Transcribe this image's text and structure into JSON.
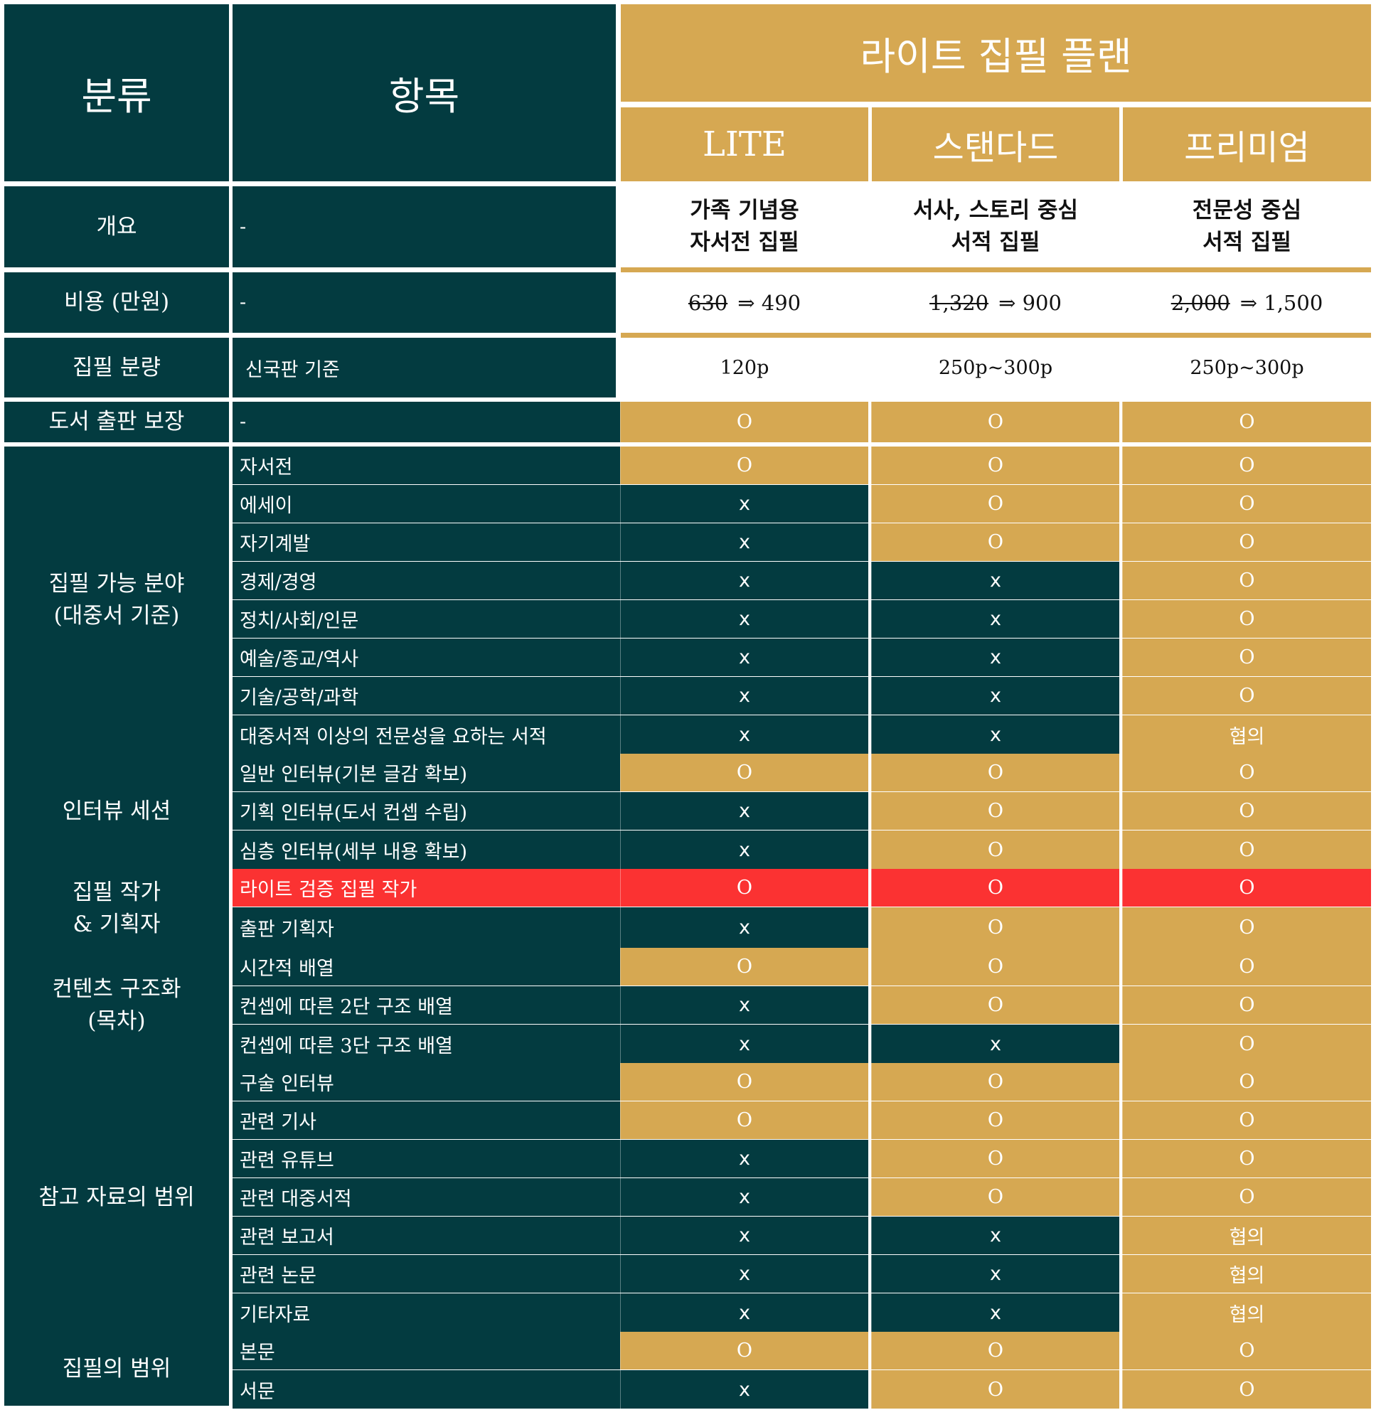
{
  "header": {
    "category_label": "분류",
    "item_label": "항목",
    "plan_group_title": "라이트 집필 플랜",
    "plans": [
      "LITE",
      "스탠다드",
      "프리미엄"
    ]
  },
  "overview": {
    "category": "개요",
    "item": "-",
    "values": [
      [
        "가족 기념용",
        "자서전 집필"
      ],
      [
        "서사, 스토리 중심",
        "서적 집필"
      ],
      [
        "전문성 중심",
        "서적 집필"
      ]
    ]
  },
  "cost": {
    "category": "비용 (만원)",
    "item": "-",
    "values": [
      {
        "original": "630",
        "arrow": "⇒",
        "discounted": "490"
      },
      {
        "original": "1,320",
        "arrow": "⇒",
        "discounted": "900"
      },
      {
        "original": "2,000",
        "arrow": "⇒",
        "discounted": "1,500"
      }
    ]
  },
  "volume": {
    "category": "집필 분량",
    "item": "신국판 기준",
    "values": [
      "120p",
      "250p~300p",
      "250p~300p"
    ]
  },
  "colors": {
    "dark_teal": "#033b40",
    "gold": "#d6a852",
    "highlight_red": "#fb3232",
    "white": "#ffffff"
  },
  "groups": [
    {
      "category": [
        "도서 출판 보장"
      ],
      "rows": [
        {
          "item": "-",
          "values": [
            "O",
            "O",
            "O"
          ],
          "itemStyle": "dark"
        }
      ]
    },
    {
      "category": [
        "집필 가능 분야",
        "(대중서 기준)"
      ],
      "rows": [
        {
          "item": "자서전",
          "values": [
            "O",
            "O",
            "O"
          ]
        },
        {
          "item": "에세이",
          "values": [
            "x",
            "O",
            "O"
          ]
        },
        {
          "item": "자기계발",
          "values": [
            "x",
            "O",
            "O"
          ]
        },
        {
          "item": "경제/경영",
          "values": [
            "x",
            "x",
            "O"
          ]
        },
        {
          "item": "정치/사회/인문",
          "values": [
            "x",
            "x",
            "O"
          ]
        },
        {
          "item": "예술/종교/역사",
          "values": [
            "x",
            "x",
            "O"
          ]
        },
        {
          "item": "기술/공학/과학",
          "values": [
            "x",
            "x",
            "O"
          ]
        },
        {
          "item": "대중서적 이상의 전문성을 요하는 서적",
          "values": [
            "x",
            "x",
            "협의"
          ]
        }
      ]
    },
    {
      "category": [
        "인터뷰 세션"
      ],
      "rows": [
        {
          "item": "일반 인터뷰(기본 글감 확보)",
          "values": [
            "O",
            "O",
            "O"
          ]
        },
        {
          "item": "기획 인터뷰(도서 컨셉 수립)",
          "values": [
            "x",
            "O",
            "O"
          ]
        },
        {
          "item": "심층 인터뷰(세부 내용 확보)",
          "values": [
            "x",
            "O",
            "O"
          ]
        }
      ]
    },
    {
      "category": [
        "집필 작가",
        "& 기획자"
      ],
      "rows": [
        {
          "item": "라이트 검증 집필 작가",
          "values": [
            "O",
            "O",
            "O"
          ],
          "highlight": true
        },
        {
          "item": "출판 기획자",
          "values": [
            "x",
            "O",
            "O"
          ]
        }
      ]
    },
    {
      "category": [
        "컨텐츠 구조화",
        "(목차)"
      ],
      "rows": [
        {
          "item": "시간적 배열",
          "values": [
            "O",
            "O",
            "O"
          ]
        },
        {
          "item": "컨셉에 따른 2단 구조 배열",
          "values": [
            "x",
            "O",
            "O"
          ]
        },
        {
          "item": "컨셉에 따른 3단 구조 배열",
          "values": [
            "x",
            "x",
            "O"
          ]
        }
      ]
    },
    {
      "category": [
        "참고 자료의 범위"
      ],
      "rows": [
        {
          "item": "구술 인터뷰",
          "values": [
            "O",
            "O",
            "O"
          ]
        },
        {
          "item": "관련 기사",
          "values": [
            "O",
            "O",
            "O"
          ]
        },
        {
          "item": "관련 유튜브",
          "values": [
            "x",
            "O",
            "O"
          ]
        },
        {
          "item": "관련 대중서적",
          "values": [
            "x",
            "O",
            "O"
          ]
        },
        {
          "item": "관련 보고서",
          "values": [
            "x",
            "x",
            "협의"
          ]
        },
        {
          "item": "관련 논문",
          "values": [
            "x",
            "x",
            "협의"
          ]
        },
        {
          "item": "기타자료",
          "values": [
            "x",
            "x",
            "협의"
          ]
        }
      ]
    },
    {
      "category": [
        "집필의 범위"
      ],
      "rows": [
        {
          "item": "본문",
          "values": [
            "O",
            "O",
            "O"
          ]
        },
        {
          "item": "서문",
          "values": [
            "x",
            "O",
            "O"
          ]
        }
      ]
    }
  ]
}
